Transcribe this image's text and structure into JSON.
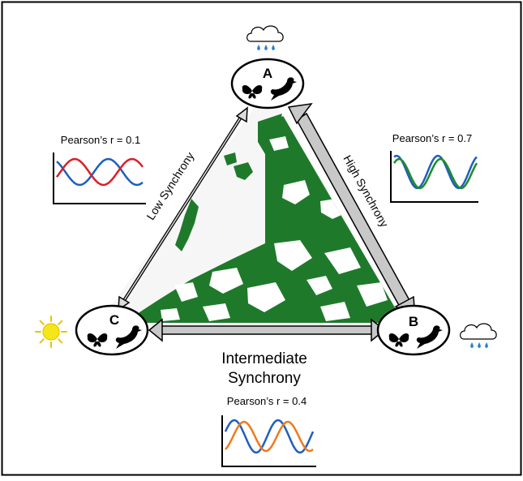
{
  "diagram": {
    "nodes": {
      "a": {
        "label": "A",
        "weather": "rain-cloud-icon"
      },
      "b": {
        "label": "B",
        "weather": "rain-cloud-icon"
      },
      "c": {
        "label": "C",
        "weather": "sun-icon"
      }
    },
    "links": {
      "ac": {
        "label": "Low Synchrony"
      },
      "ab": {
        "label": "High Synchrony"
      },
      "bc": {
        "label_line1": "Intermediate",
        "label_line2": "Synchrony"
      }
    },
    "correlations": {
      "low": {
        "text": "Pearson’s r = 0.1",
        "colors": [
          "#1f5fbf",
          "#d9202a"
        ]
      },
      "high": {
        "text": "Pearson’s r = 0.7",
        "colors": [
          "#1f5fbf",
          "#1e8c2a"
        ]
      },
      "intermediate": {
        "text": "Pearson’s r = 0.4",
        "colors": [
          "#1f5fbf",
          "#f07a1a"
        ]
      }
    },
    "colors": {
      "forest": "#1e7a2a",
      "frame": "#000000",
      "rain": "#2a7fd4",
      "sun": "#f5e61a",
      "arrow_fill": "#c8c8c8"
    }
  }
}
